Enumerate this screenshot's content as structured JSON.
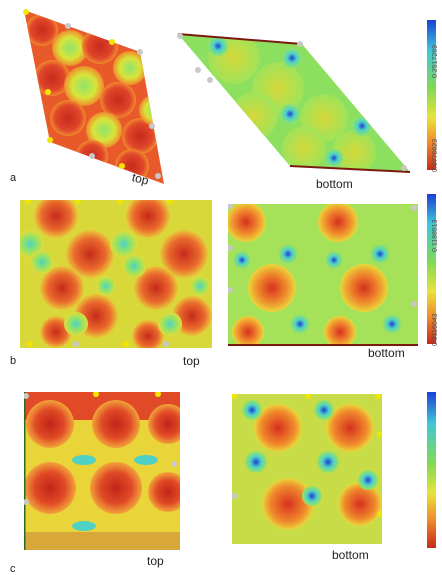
{
  "rows": [
    {
      "label": "a",
      "top_caption": "top",
      "bottom_caption": "bottom",
      "colorbar": {
        "max": "0.2517269",
        "min": "0.0776623"
      }
    },
    {
      "label": "b",
      "top_caption": "top",
      "bottom_caption": "bottom",
      "colorbar": {
        "max": "0.1188513",
        "min": "0.0116043"
      }
    },
    {
      "label": "c",
      "top_caption": "top",
      "bottom_caption": "bottom",
      "colorbar": {
        "max": "",
        "min": ""
      }
    }
  ],
  "colors": {
    "red": "#d7301f",
    "orange": "#f08a2c",
    "yellow": "#e9e23a",
    "green": "#7ed957",
    "cyan": "#4fd1c5",
    "blue": "#2345d8",
    "dot_yellow": "#f2e600",
    "dot_gray": "#c8c8c8"
  }
}
